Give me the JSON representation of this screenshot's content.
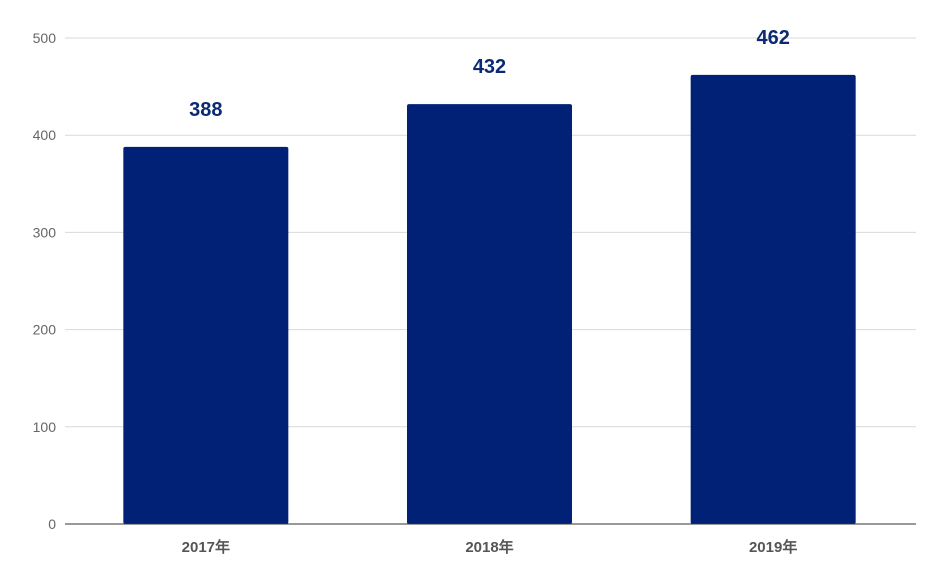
{
  "chart_data": {
    "type": "bar",
    "categories": [
      "2017年",
      "2018年",
      "2019年"
    ],
    "values": [
      388,
      432,
      462
    ],
    "data_labels": [
      "388",
      "432",
      "462"
    ],
    "title": "",
    "xlabel": "",
    "ylabel": "",
    "ylim": [
      0,
      500
    ],
    "yticks": [
      0,
      100,
      200,
      300,
      400,
      500
    ],
    "ytick_labels": [
      "0",
      "100",
      "200",
      "300",
      "400",
      "500"
    ],
    "grid": true,
    "legend": "none",
    "bar_color": "#002176",
    "label_color": "#0b2a73",
    "grid_color": "#d9d9d9",
    "axis_color": "#333333"
  }
}
